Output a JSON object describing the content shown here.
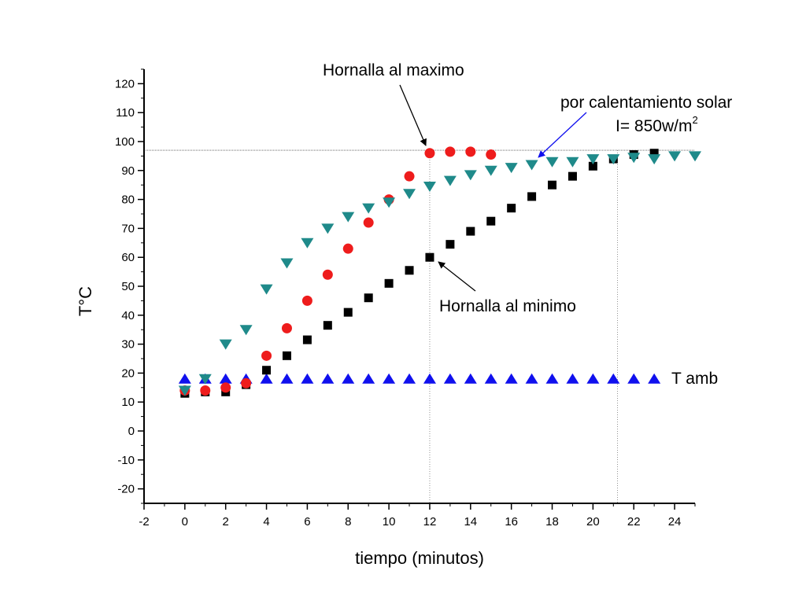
{
  "chart_data": {
    "type": "scatter",
    "xlabel": "tiempo (minutos)",
    "ylabel": "T°C",
    "xlim": [
      -2,
      25
    ],
    "ylim": [
      -25,
      125
    ],
    "xticks": [
      -2,
      0,
      2,
      4,
      6,
      8,
      10,
      12,
      14,
      16,
      18,
      20,
      22,
      24
    ],
    "yticks": [
      -20,
      -10,
      0,
      10,
      20,
      30,
      40,
      50,
      60,
      70,
      80,
      90,
      100,
      110,
      120
    ],
    "grid": false,
    "reference_lines": {
      "horizontal_y": 97,
      "vertical_x": [
        12,
        21.2
      ]
    },
    "series": [
      {
        "name": "Hornalla al minimo",
        "marker": "square",
        "color": "#000000",
        "x": [
          0,
          1,
          2,
          3,
          4,
          5,
          6,
          7,
          8,
          9,
          10,
          11,
          12,
          13,
          14,
          15,
          16,
          17,
          18,
          19,
          20,
          21,
          22,
          23
        ],
        "y": [
          13,
          13.5,
          13.5,
          16,
          21,
          26,
          31.5,
          36.5,
          41,
          46,
          51,
          55.5,
          60,
          64.5,
          69,
          72.5,
          77,
          81,
          85,
          88,
          91.5,
          94,
          95.5,
          96
        ]
      },
      {
        "name": "Hornalla al maximo",
        "marker": "circle",
        "color": "#ee1c1c",
        "x": [
          0,
          1,
          2,
          3,
          4,
          5,
          6,
          7,
          8,
          9,
          10,
          11,
          12,
          13,
          14,
          15
        ],
        "y": [
          14,
          14,
          15,
          16.5,
          26,
          35.5,
          45,
          54,
          63,
          72,
          80,
          88,
          96,
          96.5,
          96.5,
          95.5
        ]
      },
      {
        "name": "por calentamiento solar",
        "marker": "triangle-down",
        "color": "#1f8a8a",
        "x": [
          0,
          1,
          2,
          3,
          4,
          5,
          6,
          7,
          8,
          9,
          10,
          11,
          12,
          13,
          14,
          15,
          16,
          17,
          18,
          19,
          20,
          21,
          22,
          23,
          24,
          25
        ],
        "y": [
          14,
          18,
          30,
          35,
          49,
          58,
          65,
          70,
          74,
          77,
          79,
          82,
          84.5,
          86.5,
          88.5,
          90,
          91,
          92,
          93,
          93,
          94,
          94,
          94.5,
          94,
          95,
          95
        ]
      },
      {
        "name": "T amb",
        "marker": "triangle-up",
        "color": "#1010ee",
        "x": [
          0,
          1,
          2,
          3,
          4,
          5,
          6,
          7,
          8,
          9,
          10,
          11,
          12,
          13,
          14,
          15,
          16,
          17,
          18,
          19,
          20,
          21,
          22,
          23
        ],
        "y": [
          18,
          18,
          18,
          18,
          18,
          18,
          18,
          18,
          18,
          18,
          18,
          18,
          18,
          18,
          18,
          18,
          18,
          18,
          18,
          18,
          18,
          18,
          18,
          18
        ]
      }
    ],
    "annotations": {
      "maximo": "Hornalla al maximo",
      "minimo": "Hornalla al minimo",
      "solar_line1": "por calentamiento solar",
      "solar_line2": "I= 850w/m",
      "solar_sup": "2",
      "tamb": "T amb"
    }
  }
}
